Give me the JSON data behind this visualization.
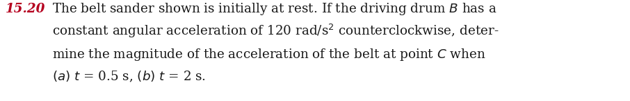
{
  "problem_number": "15.20",
  "problem_number_color": "#b5001f",
  "background_color": "#ffffff",
  "text_color": "#1a1a1a",
  "figsize": [
    9.06,
    1.46
  ],
  "dpi": 100,
  "font_size": 13.2,
  "num_label": "15.20",
  "line1": "The belt sander shown is initially at rest. If the driving drum $B$ has a",
  "line2": "constant angular acceleration of 120 rad/s$^{2}$ counterclockwise, deter-",
  "line3": "mine the magnitude of the acceleration of the belt at point $C$ when",
  "line4": "$(a)$ $t$ = 0.5 s, $(b)$ $t$ = 2 s."
}
